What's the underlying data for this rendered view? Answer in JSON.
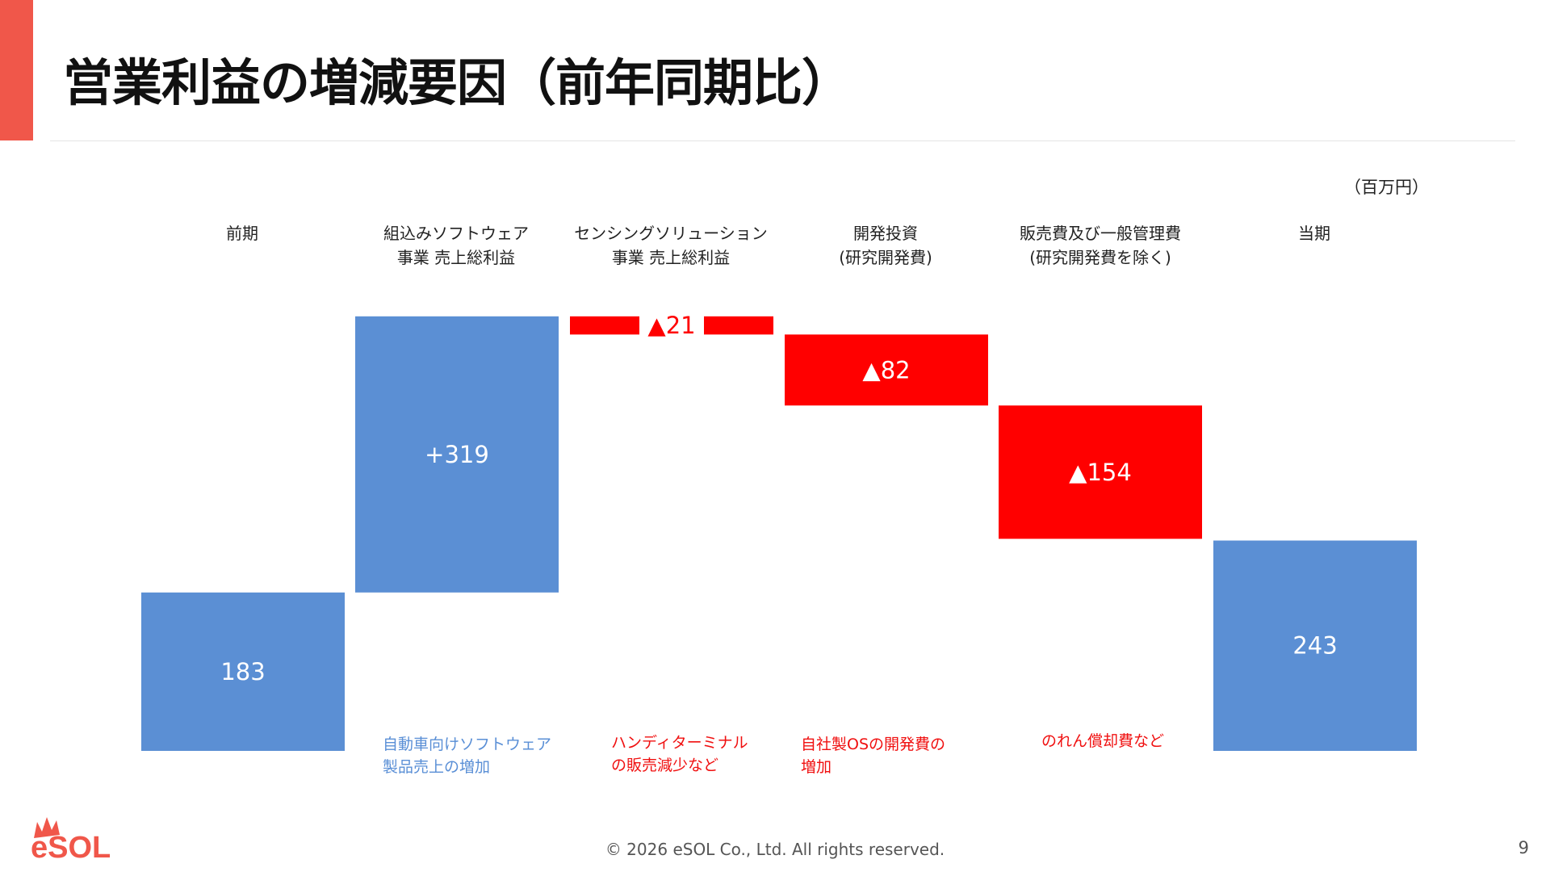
{
  "slide": {
    "title": "営業利益の増減要因（前年同期比）",
    "unit": "（百万円）",
    "copyright": "© 2026 eSOL Co., Ltd. All rights reserved.",
    "page_number": "9",
    "logo_text": "eSOL"
  },
  "columns": [
    {
      "line1": "前期",
      "line2": ""
    },
    {
      "line1": "組込みソフトウェア",
      "line2": "事業 売上総利益"
    },
    {
      "line1": "センシングソリューション",
      "line2": "事業 売上総利益"
    },
    {
      "line1": "開発投資",
      "line2": "(研究開発費)"
    },
    {
      "line1": "販売費及び一般管理費",
      "line2": "(研究開発費を除く)"
    },
    {
      "line1": "当期",
      "line2": ""
    }
  ],
  "notes": [
    {
      "line1": "自動車向けソフトウェア",
      "line2": "製品売上の増加",
      "color": "blue"
    },
    {
      "line1": "ハンディターミナル",
      "line2": "の販売減少など",
      "color": "red"
    },
    {
      "line1": "自社製OSの開発費の",
      "line2": "増加",
      "color": "red"
    },
    {
      "line1": "のれん償却費など",
      "line2": "",
      "color": "red"
    }
  ],
  "colors": {
    "accent": "#f0574a",
    "total": "#5b8fd4",
    "increase": "#5b8fd4",
    "decrease": "#ff0000"
  },
  "chart_data": {
    "type": "bar",
    "subtype": "waterfall",
    "categories": [
      "前期",
      "組込みソフトウェア事業 売上総利益",
      "センシングソリューション事業 売上総利益",
      "開発投資(研究開発費)",
      "販売費及び一般管理費(研究開発費を除く)",
      "当期"
    ],
    "values": [
      183,
      319,
      -21,
      -82,
      -154,
      243
    ],
    "kinds": [
      "total",
      "increase",
      "decrease",
      "decrease",
      "decrease",
      "total"
    ],
    "labels": [
      "183",
      "+319",
      "▲21",
      "▲82",
      "▲154",
      "243"
    ],
    "unit": "百万円"
  }
}
